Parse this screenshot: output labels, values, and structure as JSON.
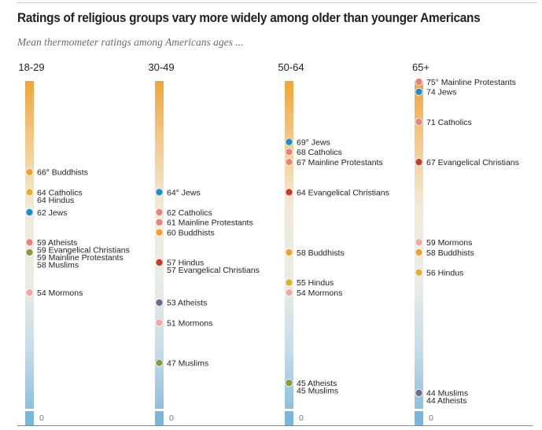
{
  "header": {
    "title": "Ratings of religious groups vary more widely among older than younger Americans",
    "subtitle": "Mean thermometer ratings among Americans ages ..."
  },
  "chart_data": {
    "type": "scatter",
    "title": "Ratings of religious groups vary more widely among older than younger Americans",
    "subtitle": "Mean thermometer ratings among Americans ages ...",
    "xlabel": "",
    "ylabel": "Mean thermometer rating",
    "ylim": [
      0,
      75
    ],
    "scale_break": "axis jumps from 0 to about 42",
    "zero_label": "0",
    "degree_marker": "°",
    "colors": {
      "Buddhists": "#f0a030",
      "Catholics": "#e8837a",
      "Hindus": "#e0b030",
      "Jews": "#1a8fc8",
      "Atheists": "#6e6a8a",
      "Evangelical Christians": "#c83a28",
      "Mainline Protestants": "#e8837a",
      "Muslims": "#8a9a40",
      "Mormons": "#f0a8a0"
    },
    "categories": [
      "18-29",
      "30-49",
      "50-64",
      "65+"
    ],
    "series": [
      {
        "name": "18-29",
        "points": [
          {
            "group": "Buddhists",
            "value": 66,
            "first": true
          },
          {
            "group": "Catholics",
            "value": 64
          },
          {
            "group": "Hindus",
            "value": 64
          },
          {
            "group": "Jews",
            "value": 62
          },
          {
            "group": "Atheists",
            "value": 59
          },
          {
            "group": "Evangelical Christians",
            "value": 59
          },
          {
            "group": "Mainline Protestants",
            "value": 59
          },
          {
            "group": "Muslims",
            "value": 58
          },
          {
            "group": "Mormons",
            "value": 54
          }
        ]
      },
      {
        "name": "30-49",
        "points": [
          {
            "group": "Jews",
            "value": 64,
            "first": true
          },
          {
            "group": "Catholics",
            "value": 62
          },
          {
            "group": "Mainline Protestants",
            "value": 61
          },
          {
            "group": "Buddhists",
            "value": 60
          },
          {
            "group": "Hindus",
            "value": 57
          },
          {
            "group": "Evangelical Christians",
            "value": 57
          },
          {
            "group": "Atheists",
            "value": 53
          },
          {
            "group": "Mormons",
            "value": 51
          },
          {
            "group": "Muslims",
            "value": 47
          }
        ]
      },
      {
        "name": "50-64",
        "points": [
          {
            "group": "Jews",
            "value": 69,
            "first": true
          },
          {
            "group": "Catholics",
            "value": 68
          },
          {
            "group": "Mainline Protestants",
            "value": 67
          },
          {
            "group": "Evangelical Christians",
            "value": 64
          },
          {
            "group": "Buddhists",
            "value": 58
          },
          {
            "group": "Hindus",
            "value": 55
          },
          {
            "group": "Mormons",
            "value": 54
          },
          {
            "group": "Atheists",
            "value": 45
          },
          {
            "group": "Muslims",
            "value": 45
          }
        ]
      },
      {
        "name": "65+",
        "points": [
          {
            "group": "Mainline Protestants",
            "value": 75,
            "first": true
          },
          {
            "group": "Jews",
            "value": 74
          },
          {
            "group": "Catholics",
            "value": 71
          },
          {
            "group": "Evangelical Christians",
            "value": 67
          },
          {
            "group": "Mormons",
            "value": 59
          },
          {
            "group": "Buddhists",
            "value": 58
          },
          {
            "group": "Hindus",
            "value": 56
          },
          {
            "group": "Muslims",
            "value": 44
          },
          {
            "group": "Atheists",
            "value": 44
          }
        ]
      }
    ]
  }
}
